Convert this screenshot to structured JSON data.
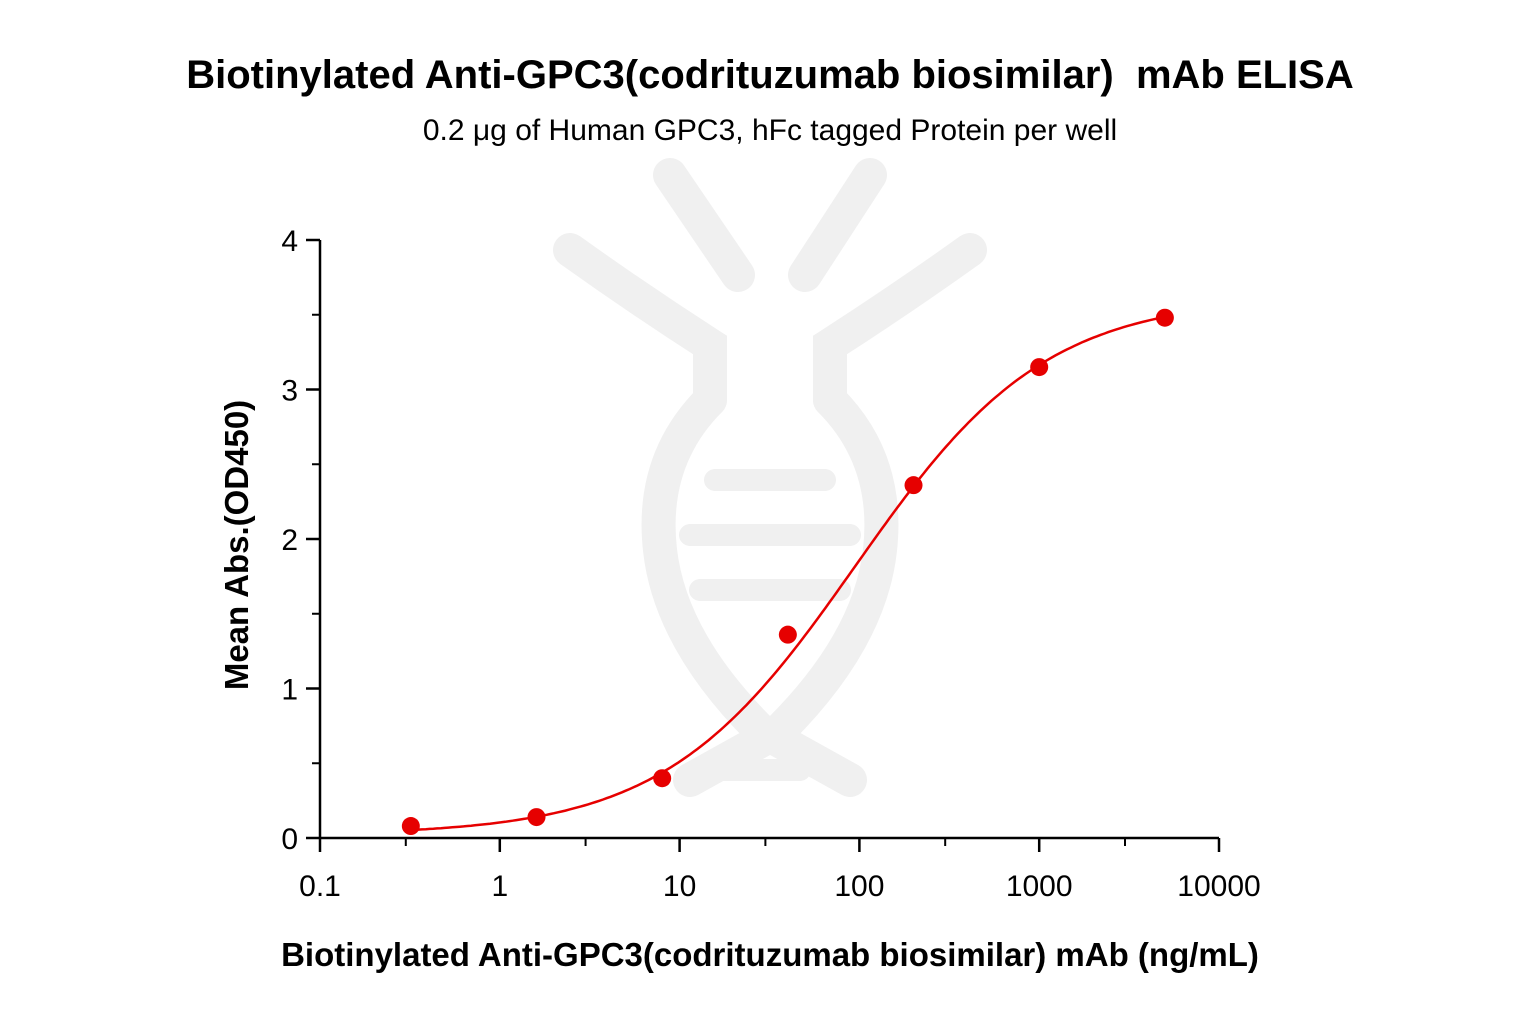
{
  "chart_data": {
    "type": "scatter",
    "title": "Biotinylated Anti-GPC3(codrituzumab biosimilar)  mAb ELISA",
    "subtitle": "0.2 μg of Human GPC3, hFc tagged Protein per well",
    "xlabel": "Biotinylated Anti-GPC3(codrituzumab biosimilar) mAb (ng/mL)",
    "ylabel": "Mean Abs.(OD450)",
    "xscale": "log",
    "xlim": [
      0.1,
      10000
    ],
    "ylim": [
      0,
      4
    ],
    "x_tick_labels": [
      "0.1",
      "1",
      "10",
      "100",
      "1000",
      "10000"
    ],
    "y_tick_labels": [
      "0",
      "1",
      "2",
      "3",
      "4"
    ],
    "series": [
      {
        "x": [
          0.32,
          1.6,
          8,
          40,
          200,
          1000,
          5000
        ],
        "y": [
          0.08,
          0.14,
          0.4,
          1.36,
          2.36,
          3.15,
          3.48
        ],
        "color": "#e60000",
        "fit": "4PL"
      }
    ],
    "grid": false,
    "legend": "none"
  }
}
